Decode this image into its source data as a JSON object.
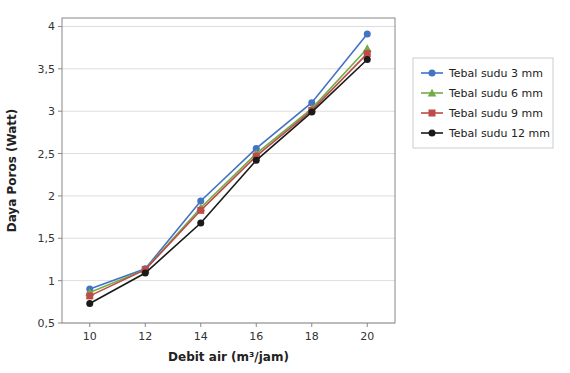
{
  "chart_data": {
    "type": "line",
    "xlabel": "Debit air (m³/jam)",
    "ylabel": "Daya Poros (Watt)",
    "x": [
      10,
      12,
      14,
      16,
      18,
      20
    ],
    "series": [
      {
        "name": "Tebal sudu 3 mm",
        "color": "#4472C4",
        "marker": "circle",
        "line_style": "solid",
        "values": [
          0.9,
          1.14,
          1.94,
          2.56,
          3.1,
          3.91
        ]
      },
      {
        "name": "Tebal sudu 6 mm",
        "color": "#70AD47",
        "marker": "triangle",
        "line_style": "solid",
        "values": [
          0.86,
          1.13,
          1.86,
          2.5,
          3.03,
          3.74
        ]
      },
      {
        "name": "Tebal sudu 9 mm",
        "color": "#BE4B48",
        "marker": "square",
        "line_style": "solid",
        "values": [
          0.82,
          1.13,
          1.83,
          2.47,
          3.01,
          3.68
        ]
      },
      {
        "name": "Tebal sudu 12 mm",
        "color": "#1A1A1A",
        "marker": "circle",
        "line_style": "solid",
        "values": [
          0.73,
          1.09,
          1.68,
          2.42,
          2.99,
          3.61
        ]
      }
    ],
    "xlim": [
      9.0,
      21.0
    ],
    "ylim": [
      0.5,
      4.1
    ],
    "xticks": [
      10,
      12,
      14,
      16,
      18,
      20
    ],
    "yticks": [
      {
        "value": 0.5,
        "label": "0,5"
      },
      1,
      {
        "value": 1.5,
        "label": "1,5"
      },
      2,
      {
        "value": 2.5,
        "label": "2,5"
      },
      3,
      {
        "value": 3.5,
        "label": "3,5"
      },
      4
    ],
    "grid": "y",
    "legend": "right"
  }
}
